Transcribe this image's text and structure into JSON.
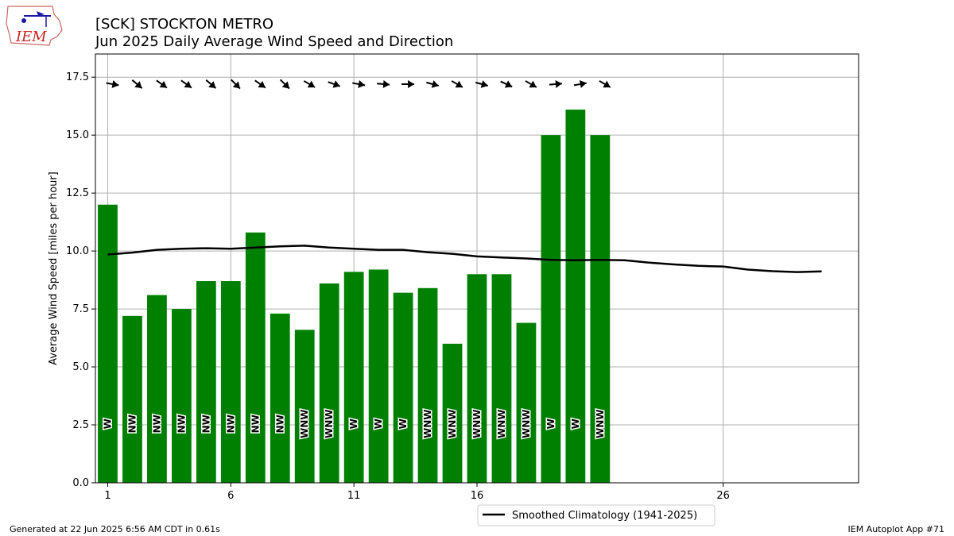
{
  "header": {
    "title_line1": "[SCK] STOCKTON METRO",
    "title_line2": "Jun 2025 Daily Average Wind Speed and Direction",
    "logo_text": "IEM"
  },
  "footer": {
    "left": "Generated at 22 Jun 2025 6:56 AM CDT in 0.61s",
    "right": "IEM Autoplot App #71"
  },
  "colors": {
    "bar": "#008000",
    "climatology": "#000000",
    "grid": "#b0b0b0",
    "logo_red": "#cc2222",
    "logo_blue": "#1a1aa6"
  },
  "chart_data": {
    "type": "bar",
    "ylabel": "Average Wind Speed [miles per hour]",
    "xlabel": "",
    "xlim": [
      0.5,
      31.5
    ],
    "ylim": [
      0,
      18.5
    ],
    "xticks": [
      1,
      6,
      11,
      16,
      26
    ],
    "yticks": [
      0,
      2.5,
      5,
      7.5,
      10,
      12.5,
      15,
      17.5
    ],
    "ytick_labels": [
      "0.0",
      "2.5",
      "5.0",
      "7.5",
      "10.0",
      "12.5",
      "15.0",
      "17.5"
    ],
    "grid": true,
    "days": [
      1,
      2,
      3,
      4,
      5,
      6,
      7,
      8,
      9,
      10,
      11,
      12,
      13,
      14,
      15,
      16,
      17,
      18,
      19,
      20,
      21
    ],
    "values": [
      12.0,
      7.2,
      8.1,
      7.5,
      8.7,
      8.7,
      10.8,
      7.3,
      6.6,
      8.6,
      9.1,
      9.2,
      8.2,
      8.4,
      6.0,
      9.0,
      9.0,
      6.9,
      15.0,
      16.1,
      15.0
    ],
    "directions": [
      "W",
      "NW",
      "NW",
      "NW",
      "NW",
      "NW",
      "NW",
      "NW",
      "WNW",
      "WNW",
      "W",
      "W",
      "W",
      "WNW",
      "WNW",
      "WNW",
      "WNW",
      "WNW",
      "W",
      "W",
      "WNW"
    ],
    "arrow_angles_deg": [
      10,
      40,
      35,
      35,
      40,
      45,
      35,
      45,
      30,
      20,
      10,
      5,
      0,
      15,
      30,
      15,
      25,
      30,
      -5,
      -10,
      30
    ],
    "climatology": {
      "name": "Smoothed Climatology (1941-2025)",
      "x": [
        1,
        2,
        3,
        4,
        5,
        6,
        7,
        8,
        9,
        10,
        11,
        12,
        13,
        14,
        15,
        16,
        17,
        18,
        19,
        20,
        21,
        22,
        23,
        24,
        25,
        26,
        27,
        28,
        29,
        30
      ],
      "values": [
        9.85,
        9.93,
        10.05,
        10.1,
        10.12,
        10.1,
        10.15,
        10.2,
        10.23,
        10.15,
        10.1,
        10.05,
        10.05,
        9.95,
        9.88,
        9.77,
        9.72,
        9.68,
        9.62,
        9.6,
        9.62,
        9.6,
        9.5,
        9.42,
        9.36,
        9.33,
        9.2,
        9.13,
        9.09,
        9.12
      ]
    },
    "legend_position": "lower-center-outside"
  }
}
